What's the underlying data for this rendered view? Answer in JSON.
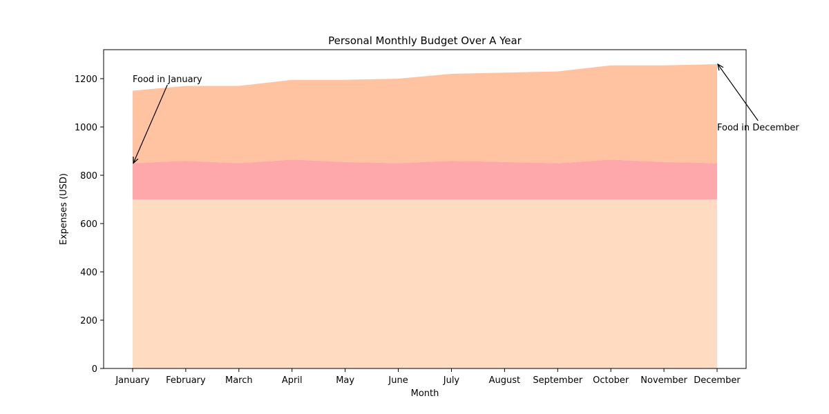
{
  "chart_data": {
    "type": "area",
    "stacked": true,
    "title": "Personal Monthly Budget Over A Year",
    "xlabel": "Month",
    "ylabel": "Expenses (USD)",
    "categories": [
      "January",
      "February",
      "March",
      "April",
      "May",
      "June",
      "July",
      "August",
      "September",
      "October",
      "November",
      "December"
    ],
    "ylim": [
      0,
      1320
    ],
    "yticks": [
      0,
      200,
      400,
      600,
      800,
      1000,
      1200
    ],
    "grid": false,
    "series": [
      {
        "values": [
          700,
          700,
          700,
          700,
          700,
          700,
          700,
          700,
          700,
          700,
          700,
          700
        ]
      },
      {
        "values": [
          150,
          160,
          150,
          165,
          155,
          150,
          160,
          155,
          150,
          165,
          155,
          150
        ]
      },
      {
        "values": [
          300,
          310,
          320,
          330,
          340,
          350,
          360,
          370,
          380,
          390,
          400,
          410
        ]
      }
    ],
    "colors": [
      "#ffdbc1",
      "#ffa8ac",
      "#ffc3a1"
    ],
    "annotations": [
      {
        "text": "Food in January",
        "point": {
          "x": "January",
          "y": 850
        },
        "text_at": {
          "x": "January",
          "y": 1200
        }
      },
      {
        "text": "Food in December",
        "point": {
          "x": "December",
          "y": 1260
        },
        "text_at": {
          "x": "December",
          "y": 1000
        }
      }
    ]
  }
}
